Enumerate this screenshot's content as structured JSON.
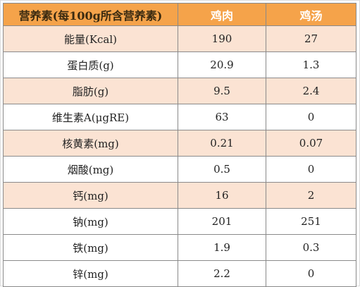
{
  "table": {
    "headers": [
      "营养素(每100g所含营养素)",
      "鸡肉",
      "鸡汤"
    ],
    "rows": [
      {
        "name": "能量(Kcal)",
        "chicken": "190",
        "soup": "27"
      },
      {
        "name": "蛋白质(g)",
        "chicken": "20.9",
        "soup": "1.3"
      },
      {
        "name": "脂肪(g)",
        "chicken": "9.5",
        "soup": "2.4"
      },
      {
        "name": "维生素A(μgRE)",
        "chicken": "63",
        "soup": "0"
      },
      {
        "name": "核黄素(mg)",
        "chicken": "0.21",
        "soup": "0.07"
      },
      {
        "name": "烟酸(mg)",
        "chicken": "0.5",
        "soup": "0"
      },
      {
        "name": "钙(mg)",
        "chicken": "16",
        "soup": "2"
      },
      {
        "name": "钠(mg)",
        "chicken": "201",
        "soup": "251"
      },
      {
        "name": "铁(mg)",
        "chicken": "1.9",
        "soup": "0.3"
      },
      {
        "name": "锌(mg)",
        "chicken": "2.2",
        "soup": "0"
      }
    ]
  },
  "colors": {
    "header_bg": "#f5a34a",
    "shaded_row_bg": "#fbe3d3",
    "value_blue": "#2a3bd6",
    "value_red": "#d23a2a"
  }
}
